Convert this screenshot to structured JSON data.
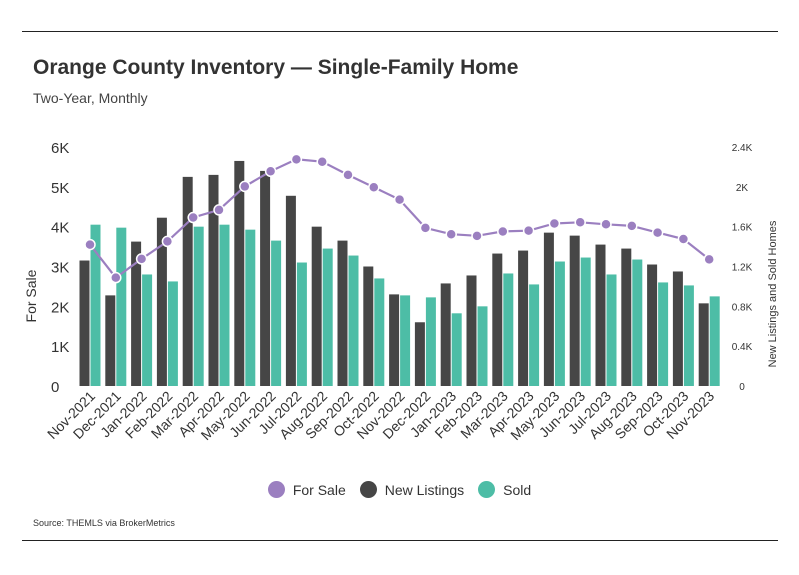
{
  "header": {
    "title": "Orange County Inventory — Single-Family Home",
    "subtitle": "Two-Year, Monthly"
  },
  "source": "Source:  THEMLS via BrokerMetrics",
  "colors": {
    "for_sale": "#9b7fc0",
    "new_listings": "#464646",
    "sold": "#4dbda6"
  },
  "chart_data": {
    "type": "bar",
    "categories": [
      "Nov-2021",
      "Dec-2021",
      "Jan-2022",
      "Feb-2022",
      "Mar-2022",
      "Apr-2022",
      "May-2022",
      "Jun-2022",
      "Jul-2022",
      "Aug-2022",
      "Sep-2022",
      "Oct-2022",
      "Nov-2022",
      "Dec-2022",
      "Jan-2023",
      "Feb-2023",
      "Mar-2023",
      "Apr-2023",
      "May-2023",
      "Jun-2023",
      "Jul-2023",
      "Aug-2023",
      "Sep-2023",
      "Oct-2023",
      "Nov-2023"
    ],
    "series": [
      {
        "name": "For Sale",
        "type": "line",
        "axis": "left",
        "values": [
          3550,
          2720,
          3190,
          3630,
          4230,
          4420,
          5010,
          5390,
          5690,
          5630,
          5300,
          4990,
          4680,
          3970,
          3810,
          3770,
          3880,
          3900,
          4080,
          4110,
          4060,
          4020,
          3850,
          3690,
          3180
        ]
      },
      {
        "name": "New Listings",
        "type": "bar",
        "axis": "right",
        "values": [
          1260,
          910,
          1450,
          1690,
          2100,
          2120,
          2260,
          2160,
          1910,
          1600,
          1460,
          1200,
          920,
          640,
          1030,
          1110,
          1330,
          1360,
          1540,
          1510,
          1420,
          1380,
          1220,
          1150,
          830
        ]
      },
      {
        "name": "Sold",
        "type": "bar",
        "axis": "right",
        "values": [
          1620,
          1590,
          1120,
          1050,
          1600,
          1620,
          1570,
          1460,
          1240,
          1380,
          1310,
          1080,
          910,
          890,
          730,
          800,
          1130,
          1020,
          1250,
          1290,
          1120,
          1270,
          1040,
          1010,
          900
        ]
      }
    ],
    "y_left": {
      "label": "For Sale",
      "ylim": [
        0,
        6000
      ],
      "ticks": [
        0,
        1000,
        2000,
        3000,
        4000,
        5000,
        6000
      ],
      "tick_labels": [
        "0",
        "1K",
        "2K",
        "3K",
        "4K",
        "5K",
        "6K"
      ]
    },
    "y_right": {
      "label": "New Listings and Sold Homes",
      "ylim": [
        0,
        2400
      ],
      "ticks": [
        0,
        400,
        800,
        1200,
        1600,
        2000,
        2400
      ],
      "tick_labels": [
        "0",
        "0.4K",
        "0.8K",
        "1.2K",
        "1.6K",
        "2K",
        "2.4K"
      ]
    },
    "grid": false,
    "legend_position": "bottom-center"
  }
}
